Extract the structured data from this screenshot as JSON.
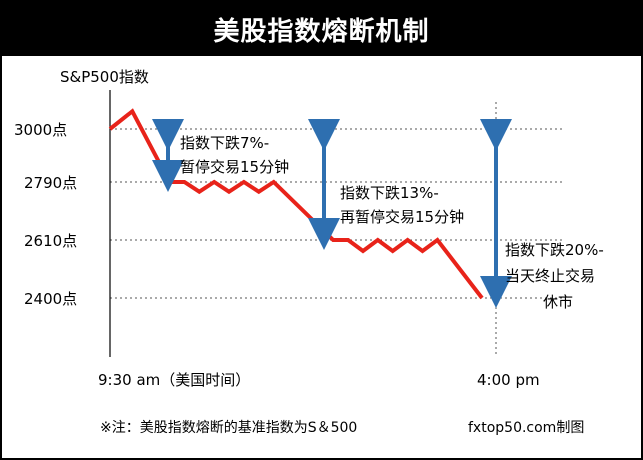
{
  "header": {
    "title": "美股指数熔断机制"
  },
  "colors": {
    "line": "#e8231a",
    "arrow": "#2e6fb0",
    "title_bg": "#000000",
    "grid": "#555555"
  },
  "chart_data": {
    "type": "line",
    "title": "美股指数熔断机制",
    "ylabel": "S&P500指数",
    "y_ticks": [
      "3000点",
      "2790点",
      "2610点",
      "2400点"
    ],
    "x_ticks": [
      "9:30 am（美国时间）",
      "4:00 pm"
    ],
    "grid": true,
    "series": [
      {
        "values": [
          [
            0,
            3000
          ],
          [
            0.06,
            3070
          ],
          [
            0.16,
            2790
          ],
          [
            0.2,
            2790
          ],
          [
            0.24,
            2760
          ],
          [
            0.28,
            2790
          ],
          [
            0.32,
            2760
          ],
          [
            0.36,
            2790
          ],
          [
            0.4,
            2760
          ],
          [
            0.44,
            2790
          ],
          [
            0.6,
            2610
          ],
          [
            0.64,
            2610
          ],
          [
            0.68,
            2570
          ],
          [
            0.72,
            2610
          ],
          [
            0.76,
            2570
          ],
          [
            0.8,
            2610
          ],
          [
            0.84,
            2570
          ],
          [
            0.88,
            2610
          ],
          [
            1.0,
            2400
          ]
        ]
      }
    ],
    "annotations": [
      {
        "text_lines": [
          "指数下跌7%-",
          "暂停交易15分钟"
        ],
        "from": 3000,
        "to": 2790
      },
      {
        "text_lines": [
          "指数下跌13%-",
          "再暂停交易15分钟"
        ],
        "from": 3000,
        "to": 2610
      },
      {
        "text_lines": [
          "指数下跌20%-",
          "当天终止交易",
          "休市"
        ],
        "from": 3000,
        "to": 2400
      }
    ],
    "footnote": "※注：美股指数熔断的基准指数为S＆500",
    "credit": "fxtop50.com制图"
  }
}
